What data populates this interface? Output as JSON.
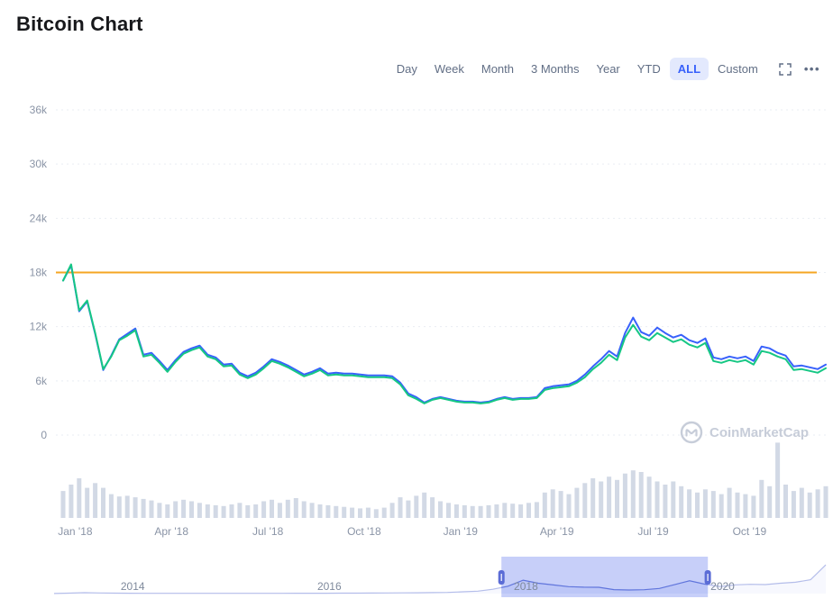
{
  "header": {
    "title": "Bitcoin Chart"
  },
  "colors": {
    "accent": "#3861fb",
    "green": "#16c784",
    "orange": "#f5a623",
    "volume": "#d2d9e5"
  },
  "toolbar": {
    "ranges": [
      {
        "id": "day",
        "label": "Day",
        "active": false
      },
      {
        "id": "week",
        "label": "Week",
        "active": false
      },
      {
        "id": "month",
        "label": "Month",
        "active": false
      },
      {
        "id": "3-months",
        "label": "3 Months",
        "active": false
      },
      {
        "id": "year",
        "label": "Year",
        "active": false
      },
      {
        "id": "ytd",
        "label": "YTD",
        "active": false
      },
      {
        "id": "all",
        "label": "ALL",
        "active": true
      },
      {
        "id": "custom",
        "label": "Custom",
        "active": false
      }
    ],
    "more_glyph": "•••"
  },
  "watermark": {
    "label": "CoinMarketCap"
  },
  "chart_data": {
    "type": "line",
    "title": "Bitcoin Chart",
    "x_range": [
      "Jan 2018",
      "Dec 2019"
    ],
    "x_points_per_month": 4,
    "x_tick_labels": [
      "Jan '18",
      "Apr '18",
      "Jul '18",
      "Oct '18",
      "Jan '19",
      "Apr '19",
      "Jul '19",
      "Oct '19"
    ],
    "y_unit": "USD (thousands)",
    "ylim_k": [
      0,
      38
    ],
    "yticks_k": [
      0,
      6,
      12,
      18,
      24,
      30,
      36
    ],
    "ytick_labels": [
      "0",
      "6k",
      "12k",
      "18k",
      "24k",
      "30k",
      "36k"
    ],
    "grid": "horizontal-dotted",
    "legend": "none",
    "reference_line": {
      "value_k": 18,
      "color": "#f5a623"
    },
    "series": [
      {
        "name": "price-secondary",
        "color": "#3861fb",
        "values_k": [
          17.1,
          18.8,
          13.7,
          14.8,
          11.2,
          7.2,
          8.8,
          10.6,
          11.2,
          11.8,
          8.9,
          9.1,
          8.2,
          7.2,
          8.3,
          9.2,
          9.6,
          9.9,
          8.9,
          8.6,
          7.8,
          7.9,
          6.9,
          6.5,
          6.9,
          7.6,
          8.4,
          8.1,
          7.7,
          7.2,
          6.7,
          7.0,
          7.4,
          6.8,
          6.9,
          6.8,
          6.8,
          6.7,
          6.6,
          6.6,
          6.6,
          6.5,
          5.8,
          4.6,
          4.2,
          3.6,
          4.0,
          4.2,
          4.0,
          3.8,
          3.7,
          3.7,
          3.6,
          3.7,
          4.0,
          4.2,
          4.0,
          4.1,
          4.1,
          4.2,
          5.2,
          5.4,
          5.5,
          5.6,
          6.0,
          6.7,
          7.6,
          8.4,
          9.3,
          8.7,
          11.3,
          13.0,
          11.4,
          11.0,
          11.9,
          11.3,
          10.8,
          11.1,
          10.5,
          10.2,
          10.7,
          8.6,
          8.4,
          8.7,
          8.5,
          8.7,
          8.2,
          9.8,
          9.6,
          9.1,
          8.8,
          7.6,
          7.7,
          7.5,
          7.3,
          7.8
        ]
      },
      {
        "name": "price-primary",
        "color": "#16c784",
        "values_k": [
          17.1,
          18.9,
          13.8,
          14.9,
          11.3,
          7.3,
          8.7,
          10.5,
          11.0,
          11.6,
          8.7,
          8.9,
          8.0,
          7.0,
          8.1,
          9.0,
          9.4,
          9.7,
          8.7,
          8.4,
          7.6,
          7.7,
          6.7,
          6.3,
          6.7,
          7.4,
          8.2,
          7.9,
          7.5,
          7.0,
          6.5,
          6.8,
          7.2,
          6.6,
          6.7,
          6.6,
          6.6,
          6.5,
          6.4,
          6.4,
          6.4,
          6.3,
          5.6,
          4.4,
          4.0,
          3.5,
          3.9,
          4.1,
          3.9,
          3.7,
          3.6,
          3.6,
          3.5,
          3.6,
          3.9,
          4.1,
          3.9,
          4.0,
          4.0,
          4.1,
          5.0,
          5.2,
          5.3,
          5.4,
          5.8,
          6.4,
          7.3,
          8.0,
          8.9,
          8.3,
          10.8,
          12.2,
          10.9,
          10.5,
          11.3,
          10.8,
          10.3,
          10.6,
          10.0,
          9.7,
          10.2,
          8.2,
          8.0,
          8.3,
          8.1,
          8.3,
          7.8,
          9.3,
          9.1,
          8.7,
          8.4,
          7.2,
          7.3,
          7.1,
          6.9,
          7.4
        ]
      }
    ],
    "volume_bars": {
      "color": "#d2d9e5",
      "values_pct": [
        34,
        42,
        50,
        38,
        44,
        38,
        30,
        27,
        28,
        26,
        24,
        22,
        19,
        17,
        21,
        23,
        21,
        19,
        17,
        16,
        15,
        17,
        19,
        16,
        17,
        21,
        23,
        19,
        23,
        25,
        21,
        19,
        17,
        16,
        15,
        14,
        13,
        12,
        13,
        11,
        13,
        19,
        26,
        22,
        28,
        32,
        26,
        21,
        19,
        17,
        16,
        15,
        15,
        16,
        17,
        19,
        18,
        17,
        19,
        20,
        32,
        36,
        34,
        30,
        38,
        44,
        50,
        46,
        52,
        48,
        56,
        60,
        58,
        52,
        46,
        42,
        46,
        40,
        36,
        32,
        36,
        34,
        30,
        38,
        32,
        30,
        28,
        48,
        40,
        95,
        42,
        34,
        38,
        32,
        36,
        40
      ]
    },
    "navigator": {
      "year_labels": [
        "2014",
        "2016",
        "2018",
        "2020"
      ],
      "domain_years": [
        2013.2,
        2021.05
      ],
      "selection_years": [
        2017.75,
        2019.85
      ],
      "line_color": "#5a6ed0",
      "selection_color": "#6b82f0",
      "values_k": [
        0.12,
        0.5,
        0.9,
        0.6,
        0.45,
        0.35,
        0.3,
        0.28,
        0.26,
        0.25,
        0.24,
        0.23,
        0.24,
        0.25,
        0.27,
        0.3,
        0.32,
        0.36,
        0.4,
        0.43,
        0.46,
        0.55,
        0.62,
        0.7,
        0.8,
        1.0,
        1.2,
        1.8,
        2.5,
        4.4,
        7.5,
        13.5,
        10.5,
        8.7,
        7.0,
        6.5,
        6.4,
        4.0,
        3.6,
        3.9,
        5.2,
        9.0,
        12.9,
        9.5,
        7.2,
        8.8,
        9.4,
        9.1,
        10.5,
        11.5,
        14.0,
        29.0
      ]
    }
  }
}
